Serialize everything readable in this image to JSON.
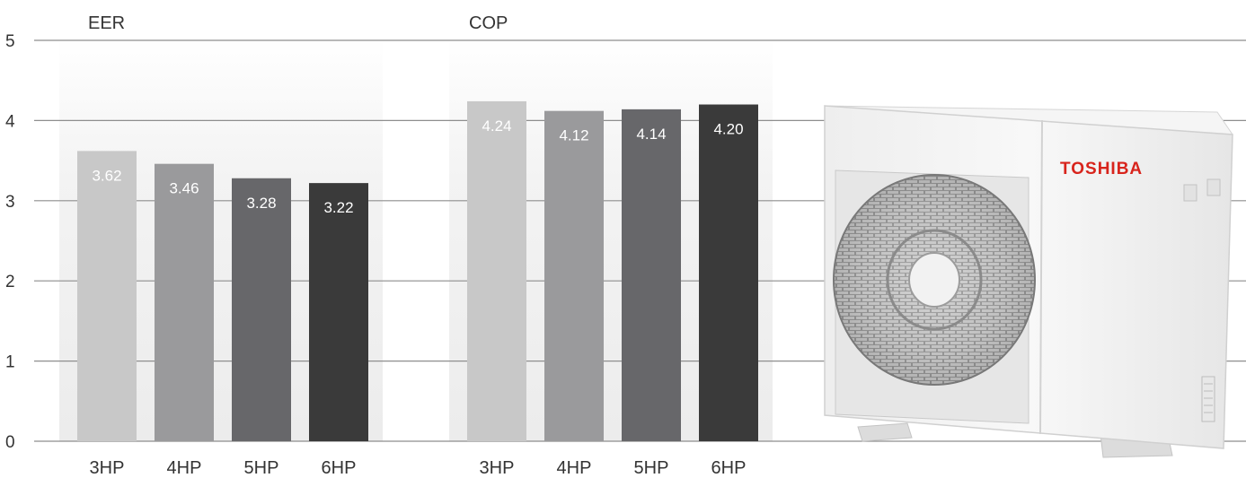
{
  "chart_data": [
    {
      "type": "bar",
      "title": "EER",
      "categories": [
        "3HP",
        "4HP",
        "5HP",
        "6HP"
      ],
      "values": [
        3.62,
        3.46,
        3.28,
        3.22
      ],
      "value_labels": [
        "3.62",
        "3.46",
        "3.28",
        "3.22"
      ],
      "bar_colors": [
        "#c8c8c8",
        "#9a9a9c",
        "#67676a",
        "#3a3a3a"
      ],
      "ylim": [
        0,
        5
      ],
      "yticks": [
        "0",
        "1",
        "2",
        "3",
        "4",
        "5"
      ],
      "grid": true
    },
    {
      "type": "bar",
      "title": "COP",
      "categories": [
        "3HP",
        "4HP",
        "5HP",
        "6HP"
      ],
      "values": [
        4.24,
        4.12,
        4.14,
        4.2
      ],
      "value_labels": [
        "4.24",
        "4.12",
        "4.14",
        "4.20"
      ],
      "bar_colors": [
        "#c8c8c8",
        "#9a9a9c",
        "#67676a",
        "#3a3a3a"
      ],
      "ylim": [
        0,
        5
      ],
      "yticks": [
        "0",
        "1",
        "2",
        "3",
        "4",
        "5"
      ],
      "grid": true
    }
  ],
  "product_image": {
    "brand_label": "TOSHIBA",
    "brand_color": "#d8241c"
  }
}
